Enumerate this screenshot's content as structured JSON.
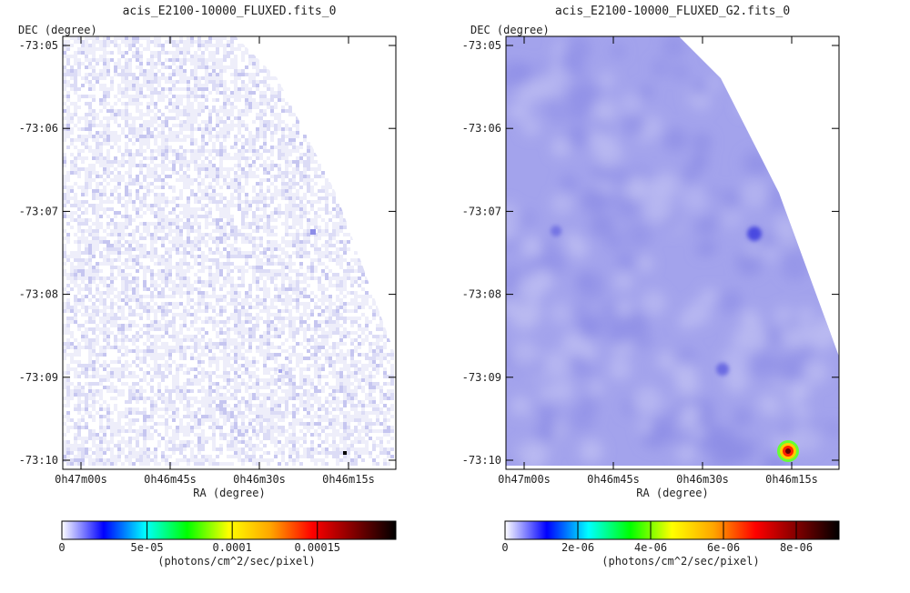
{
  "panels": [
    {
      "id": "left",
      "title": "acis_E2100-10000_FLUXED.fits_0",
      "image_style": "raw",
      "y_label": "DEC (degree)",
      "x_label": "RA (degree)",
      "y_ticks": [
        "-73:05",
        "-73:06",
        "-73:07",
        "-73:08",
        "-73:09",
        "-73:10"
      ],
      "x_ticks": [
        "0h47m00s",
        "0h46m45s",
        "0h46m30s",
        "0h46m15s"
      ],
      "colorbar": {
        "ticks": [
          "0",
          "5e-05",
          "0.0001",
          "0.00015"
        ],
        "label": "(photons/cm^2/sec/pixel)"
      }
    },
    {
      "id": "right",
      "title": "acis_E2100-10000_FLUXED_G2.fits_0",
      "image_style": "smoothed",
      "y_label": "DEC (degree)",
      "x_label": "RA (degree)",
      "y_ticks": [
        "-73:05",
        "-73:06",
        "-73:07",
        "-73:08",
        "-73:09",
        "-73:10"
      ],
      "x_ticks": [
        "0h47m00s",
        "0h46m45s",
        "0h46m30s",
        "0h46m15s"
      ],
      "colorbar": {
        "ticks": [
          "0",
          "2e-06",
          "4e-06",
          "6e-06",
          "8e-06"
        ],
        "label": "(photons/cm^2/sec/pixel)"
      }
    }
  ],
  "colormap": [
    "#ffffff",
    "#0000ff",
    "#00ffff",
    "#00ff00",
    "#ffff00",
    "#ffa500",
    "#ff0000",
    "#800000",
    "#000000"
  ]
}
